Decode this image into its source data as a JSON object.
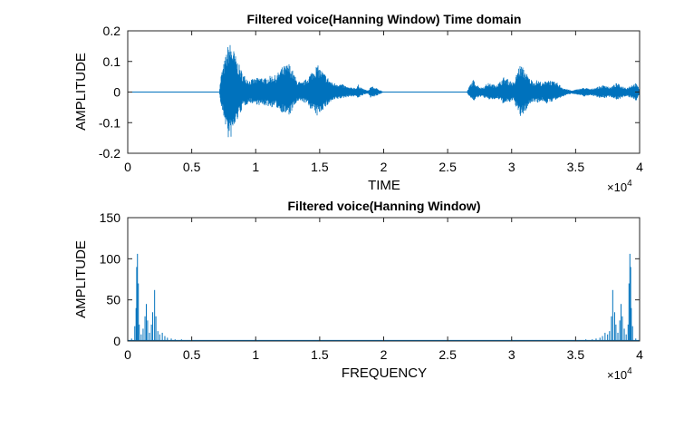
{
  "colors": {
    "series": "#0072BD",
    "axis": "#262626",
    "background": "#ffffff"
  },
  "chart_data": [
    {
      "type": "line",
      "title": "Filtered voice(Hanning Window) Time domain",
      "xlabel": "TIME",
      "ylabel": "AMPLITUDE",
      "xlim": [
        0,
        40000
      ],
      "ylim": [
        -0.2,
        0.2
      ],
      "x_exponent_base": "×10",
      "x_exponent_power": "4",
      "xticks": [
        0,
        5000,
        10000,
        15000,
        20000,
        25000,
        30000,
        35000,
        40000
      ],
      "xtick_labels": [
        "0",
        "0.5",
        "1",
        "1.5",
        "2",
        "2.5",
        "3",
        "3.5",
        "4"
      ],
      "yticks": [
        0.2,
        0.1,
        0,
        -0.1,
        -0.2
      ],
      "ytick_labels": [
        "0.2",
        "0.1",
        "0",
        "-0.1",
        "-0.2"
      ],
      "grid": false,
      "envelope": {
        "x": [
          0,
          7150,
          7300,
          7600,
          7900,
          8200,
          8500,
          9000,
          9500,
          10000,
          10400,
          10800,
          11200,
          11600,
          12000,
          12600,
          12800,
          13200,
          13600,
          14000,
          14400,
          14800,
          15000,
          15200,
          15500,
          15800,
          16000,
          16300,
          16800,
          17300,
          17900,
          18000,
          18400,
          18800,
          19000,
          19300,
          19600,
          20000,
          26500,
          26700,
          27000,
          27300,
          27600,
          27900,
          28100,
          28600,
          29000,
          29400,
          29800,
          30200,
          30500,
          30700,
          31000,
          31400,
          31800,
          32000,
          32500,
          32800,
          33200,
          33600,
          34000,
          34300,
          34700,
          35200,
          35700,
          36200,
          36500,
          37000,
          37300,
          37700,
          38200,
          38600,
          39000,
          39400,
          39700,
          40000
        ],
        "upper": [
          0.0,
          0.0,
          0.06,
          0.11,
          0.165,
          0.15,
          0.11,
          0.06,
          0.04,
          0.045,
          0.05,
          0.045,
          0.055,
          0.055,
          0.08,
          0.095,
          0.08,
          0.04,
          0.03,
          0.045,
          0.07,
          0.09,
          0.08,
          0.07,
          0.055,
          0.04,
          0.03,
          0.03,
          0.025,
          0.015,
          0.015,
          0.025,
          0.01,
          0.005,
          0.02,
          0.015,
          0.01,
          0.0,
          0.0,
          0.02,
          0.04,
          0.025,
          0.015,
          0.02,
          0.03,
          0.025,
          0.03,
          0.05,
          0.04,
          0.03,
          0.08,
          0.09,
          0.075,
          0.045,
          0.035,
          0.04,
          0.03,
          0.045,
          0.035,
          0.03,
          0.015,
          0.01,
          0.005,
          0.01,
          0.015,
          0.01,
          0.015,
          0.02,
          0.025,
          0.015,
          0.03,
          0.02,
          0.015,
          0.025,
          0.03,
          0.01
        ],
        "lower": [
          0.0,
          0.0,
          -0.05,
          -0.1,
          -0.165,
          -0.14,
          -0.1,
          -0.05,
          -0.035,
          -0.04,
          -0.045,
          -0.045,
          -0.05,
          -0.05,
          -0.065,
          -0.08,
          -0.065,
          -0.035,
          -0.03,
          -0.04,
          -0.06,
          -0.08,
          -0.07,
          -0.06,
          -0.05,
          -0.035,
          -0.03,
          -0.025,
          -0.02,
          -0.015,
          -0.015,
          -0.02,
          -0.01,
          -0.005,
          -0.02,
          -0.015,
          -0.01,
          0.0,
          0.0,
          -0.015,
          -0.03,
          -0.02,
          -0.015,
          -0.02,
          -0.025,
          -0.025,
          -0.025,
          -0.04,
          -0.035,
          -0.03,
          -0.07,
          -0.085,
          -0.07,
          -0.04,
          -0.03,
          -0.035,
          -0.03,
          -0.04,
          -0.03,
          -0.025,
          -0.015,
          -0.01,
          -0.005,
          -0.01,
          -0.015,
          -0.01,
          -0.015,
          -0.02,
          -0.02,
          -0.015,
          -0.025,
          -0.02,
          -0.015,
          -0.02,
          -0.03,
          -0.01
        ]
      }
    },
    {
      "type": "line",
      "title": "Filtered voice(Hanning Window)",
      "xlabel": "FREQUENCY",
      "ylabel": "AMPLITUDE",
      "xlim": [
        0,
        40000
      ],
      "ylim": [
        0,
        150
      ],
      "x_exponent_base": "×10",
      "x_exponent_power": "4",
      "xticks": [
        0,
        5000,
        10000,
        15000,
        20000,
        25000,
        30000,
        35000,
        40000
      ],
      "xtick_labels": [
        "0",
        "0.5",
        "1",
        "1.5",
        "2",
        "2.5",
        "3",
        "3.5",
        "4"
      ],
      "yticks": [
        150,
        100,
        50,
        0
      ],
      "ytick_labels": [
        "150",
        "100",
        "50",
        "0"
      ],
      "grid": false,
      "peaks": [
        {
          "x": 300,
          "y": 3
        },
        {
          "x": 550,
          "y": 18
        },
        {
          "x": 650,
          "y": 40
        },
        {
          "x": 700,
          "y": 90
        },
        {
          "x": 760,
          "y": 106
        },
        {
          "x": 830,
          "y": 70
        },
        {
          "x": 900,
          "y": 20
        },
        {
          "x": 1050,
          "y": 8
        },
        {
          "x": 1200,
          "y": 15
        },
        {
          "x": 1350,
          "y": 30
        },
        {
          "x": 1450,
          "y": 45
        },
        {
          "x": 1550,
          "y": 25
        },
        {
          "x": 1700,
          "y": 10
        },
        {
          "x": 1850,
          "y": 20
        },
        {
          "x": 1950,
          "y": 35
        },
        {
          "x": 2100,
          "y": 62
        },
        {
          "x": 2200,
          "y": 30
        },
        {
          "x": 2350,
          "y": 12
        },
        {
          "x": 2500,
          "y": 8
        },
        {
          "x": 2700,
          "y": 10
        },
        {
          "x": 2900,
          "y": 6
        },
        {
          "x": 3100,
          "y": 4
        },
        {
          "x": 3400,
          "y": 3
        },
        {
          "x": 3700,
          "y": 2
        },
        {
          "x": 4200,
          "y": 2
        },
        {
          "x": 4700,
          "y": 1
        },
        {
          "x": 10000,
          "y": 2
        },
        {
          "x": 10300,
          "y": 1
        },
        {
          "x": 25800,
          "y": 1
        },
        {
          "x": 29500,
          "y": 1
        },
        {
          "x": 30000,
          "y": 2
        },
        {
          "x": 35300,
          "y": 1
        },
        {
          "x": 35800,
          "y": 2
        },
        {
          "x": 36300,
          "y": 2
        },
        {
          "x": 36600,
          "y": 3
        },
        {
          "x": 36900,
          "y": 4
        },
        {
          "x": 37100,
          "y": 6
        },
        {
          "x": 37300,
          "y": 10
        },
        {
          "x": 37500,
          "y": 8
        },
        {
          "x": 37650,
          "y": 12
        },
        {
          "x": 37800,
          "y": 30
        },
        {
          "x": 37900,
          "y": 62
        },
        {
          "x": 38050,
          "y": 35
        },
        {
          "x": 38150,
          "y": 20
        },
        {
          "x": 38300,
          "y": 10
        },
        {
          "x": 38450,
          "y": 25
        },
        {
          "x": 38550,
          "y": 45
        },
        {
          "x": 38650,
          "y": 30
        },
        {
          "x": 38800,
          "y": 15
        },
        {
          "x": 38950,
          "y": 8
        },
        {
          "x": 39100,
          "y": 20
        },
        {
          "x": 39170,
          "y": 70
        },
        {
          "x": 39240,
          "y": 106
        },
        {
          "x": 39300,
          "y": 90
        },
        {
          "x": 39350,
          "y": 40
        },
        {
          "x": 39450,
          "y": 18
        },
        {
          "x": 39700,
          "y": 3
        }
      ]
    }
  ]
}
